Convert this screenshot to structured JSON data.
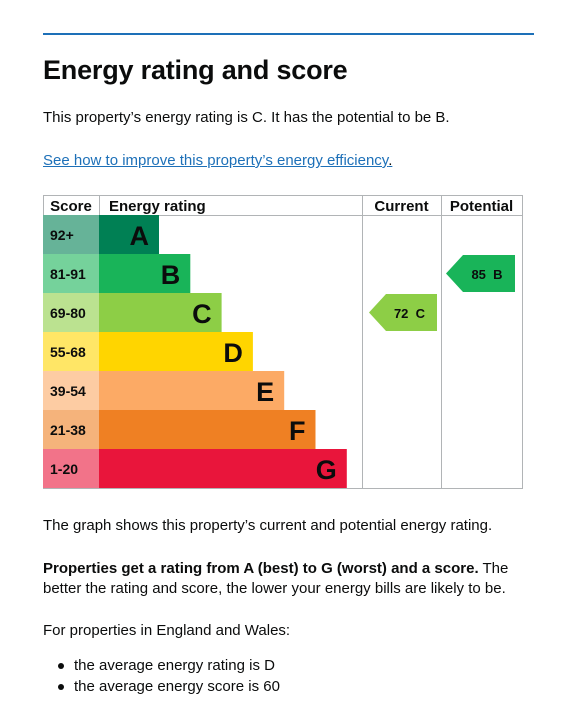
{
  "heading": "Energy rating and score",
  "intro": "This property’s energy rating is C. It has the potential to be B.",
  "improve_link": "See how to improve this property’s energy efficiency",
  "link_period": ".",
  "chart_data": {
    "type": "bar",
    "headers": {
      "score": "Score",
      "rating": "Energy rating",
      "current": "Current",
      "potential": "Potential"
    },
    "bands": [
      {
        "range": "92+",
        "letter": "A",
        "color": "#008054",
        "range_bg": "#66b398"
      },
      {
        "range": "81-91",
        "letter": "B",
        "color": "#19b459",
        "range_bg": "#75d29b"
      },
      {
        "range": "69-80",
        "letter": "C",
        "color": "#8dce46",
        "range_bg": "#bbe290"
      },
      {
        "range": "55-68",
        "letter": "D",
        "color": "#ffd500",
        "range_bg": "#ffe666"
      },
      {
        "range": "39-54",
        "letter": "E",
        "color": "#fcaa65",
        "range_bg": "#fdcca3"
      },
      {
        "range": "21-38",
        "letter": "F",
        "color": "#ef8023",
        "range_bg": "#f5b37b"
      },
      {
        "range": "1-20",
        "letter": "G",
        "color": "#e9153b",
        "range_bg": "#f27389"
      }
    ],
    "current": {
      "score": 72,
      "letter": "C",
      "label": "72  C",
      "color": "#8dce46"
    },
    "potential": {
      "score": 85,
      "letter": "B",
      "label": "85  B",
      "color": "#19b459"
    }
  },
  "graph_caption": "The graph shows this property’s current and potential energy rating.",
  "properties_bold": "Properties get a rating from A (best) to G (worst) and a score.",
  "properties_rest": " The better the rating and score, the lower your energy bills are likely to be.",
  "region_text": "For properties in England and Wales:",
  "bullets": [
    "the average energy rating is D",
    "the average energy score is 60"
  ]
}
